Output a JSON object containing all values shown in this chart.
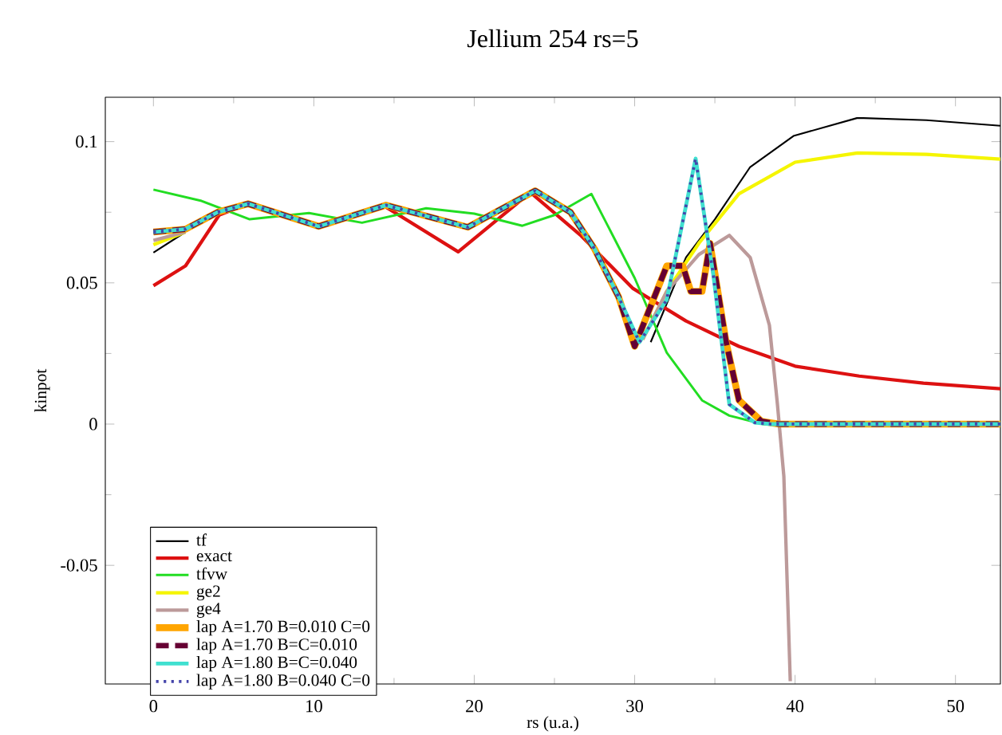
{
  "chart_data": {
    "type": "line",
    "title": "Jellium 254 rs=5",
    "xlabel": "rs (u.a.)",
    "ylabel": "kinpot",
    "xlim": [
      -3,
      52.8
    ],
    "ylim": [
      -0.092,
      0.1157
    ],
    "xticks": [
      0,
      10,
      20,
      30,
      40,
      50
    ],
    "yticks": [
      -0.05,
      0,
      0.05,
      0.1
    ],
    "legend": "bottom left",
    "marker": "none",
    "series": [
      {
        "name": "tf",
        "color": "#000000",
        "x": [
          0,
          2,
          4,
          5.9,
          10.3,
          14.5,
          19.6,
          23.8,
          26,
          27.5,
          29,
          31,
          33.2,
          35,
          37.2,
          39.9,
          43.9,
          48.2,
          52.8
        ],
        "values": [
          0.0607,
          0.068,
          null,
          null,
          null,
          null,
          null,
          null,
          null,
          null,
          null,
          0.029,
          0.059,
          0.0725,
          0.091,
          0.102,
          0.1084,
          0.1076,
          0.1056
        ]
      },
      {
        "name": "exact",
        "color": "#dd1111",
        "x": [
          0,
          2,
          4.1,
          5.9,
          10.3,
          14.3,
          19,
          23.5,
          26.6,
          29.9,
          33.2,
          36.5,
          40,
          44,
          48,
          52.8
        ],
        "values": [
          0.049,
          0.056,
          0.074,
          0.078,
          0.07,
          0.0775,
          0.061,
          0.082,
          0.067,
          0.048,
          0.0365,
          0.0275,
          0.0205,
          0.017,
          0.0145,
          0.0125
        ]
      },
      {
        "name": "tfvw",
        "color": "#22dd22",
        "x": [
          0,
          3,
          6,
          9.7,
          13,
          17,
          20,
          23,
          25,
          27.3,
          30,
          32,
          34.2,
          35.9,
          38,
          52.8
        ],
        "values": [
          0.083,
          0.079,
          0.0725,
          0.0747,
          0.0713,
          0.0764,
          0.0745,
          0.0702,
          0.074,
          0.0815,
          0.0517,
          0.0253,
          0.0084,
          0.003,
          0,
          0
        ]
      },
      {
        "name": "ge2",
        "color": "#f5f500",
        "x": [
          0,
          2,
          4,
          5.9,
          10.3,
          14.5,
          19.6,
          23.8,
          26,
          27.5,
          29,
          30.5,
          32,
          34,
          36.5,
          40,
          43.9,
          48.2,
          52.8
        ],
        "values": [
          0.0635,
          0.068,
          null,
          null,
          null,
          null,
          null,
          null,
          null,
          null,
          null,
          0.03,
          0.047,
          0.064,
          0.0815,
          0.0927,
          0.096,
          0.0955,
          0.0938
        ]
      },
      {
        "name": "ge4",
        "color": "#bc9a9a",
        "x": [
          0,
          2,
          4,
          5.9,
          10.3,
          14.5,
          19.6,
          23.8,
          26,
          27.5,
          29,
          30.5,
          32,
          34,
          35.9,
          37.2,
          38.4,
          38.9,
          39.3,
          39.7
        ],
        "values": [
          0.065,
          0.068,
          null,
          null,
          null,
          null,
          null,
          null,
          null,
          null,
          null,
          0.03,
          0.047,
          0.06,
          0.0668,
          0.059,
          0.035,
          0.007,
          -0.0185,
          -0.091
        ]
      },
      {
        "name": "lap A=1.70 B=0.010 C=0",
        "color": "#ffa500",
        "x": [
          0,
          2,
          4,
          5.9,
          10.3,
          14.5,
          19.6,
          23.8,
          26,
          27.5,
          29,
          30,
          32,
          33,
          33.5,
          34.2,
          34.7,
          35.7,
          36.5,
          37.9,
          39,
          52.8
        ],
        "values": [
          0.068,
          0.069,
          0.075,
          0.078,
          0.07,
          0.0775,
          0.0697,
          0.0826,
          0.075,
          0.062,
          0.045,
          0.0275,
          0.056,
          0.056,
          0.047,
          0.047,
          0.064,
          0.029,
          0.0085,
          0.001,
          0,
          0
        ]
      },
      {
        "name": "lap A=1.70 B=C=0.010",
        "color": "#660033",
        "line_style": "dashed",
        "x": [
          0,
          2,
          4,
          5.9,
          10.3,
          14.5,
          19.6,
          23.8,
          26,
          27.5,
          29,
          30,
          32,
          33,
          33.5,
          34.2,
          34.7,
          35.7,
          36.5,
          37.9,
          39,
          52.8
        ],
        "values": [
          0.068,
          0.069,
          0.075,
          0.078,
          0.07,
          0.0775,
          0.0697,
          0.0826,
          0.075,
          0.062,
          0.045,
          0.0275,
          0.056,
          0.056,
          0.047,
          0.047,
          0.064,
          0.029,
          0.0085,
          0.001,
          0,
          0
        ]
      },
      {
        "name": "lap A=1.80 B=C=0.040",
        "color": "#40e0d0",
        "x": [
          0,
          2,
          4,
          5.9,
          10.3,
          14.5,
          19.6,
          23.8,
          26,
          27.5,
          29,
          30.3,
          32,
          33.8,
          34.9,
          35.9,
          37.5,
          38.5,
          52.8
        ],
        "values": [
          0.068,
          0.069,
          0.075,
          0.078,
          0.07,
          0.0775,
          0.0697,
          0.0826,
          0.075,
          0.062,
          0.045,
          0.029,
          0.044,
          0.094,
          0.053,
          0.007,
          0.0005,
          0,
          0
        ]
      },
      {
        "name": "lap A=1.80 B=0.040 C=0",
        "color": "#4444aa",
        "line_style": "dotted",
        "x": [
          0,
          2,
          4,
          5.9,
          10.3,
          14.5,
          19.6,
          23.8,
          26,
          27.5,
          29,
          30.3,
          32,
          33.8,
          34.9,
          35.9,
          37.5,
          38.5,
          52.8
        ],
        "values": [
          0.068,
          0.069,
          0.075,
          0.078,
          0.07,
          0.0775,
          0.0697,
          0.0826,
          0.075,
          0.062,
          0.045,
          0.029,
          0.044,
          0.094,
          0.053,
          0.007,
          0.0005,
          0,
          0
        ]
      }
    ]
  }
}
